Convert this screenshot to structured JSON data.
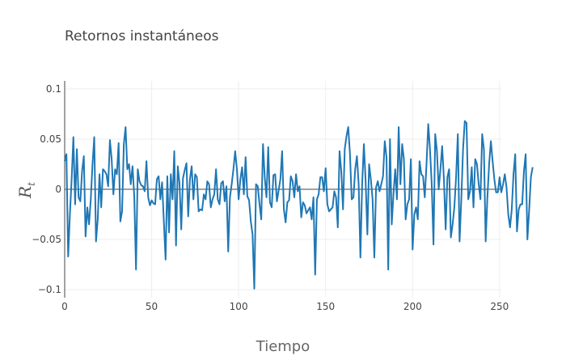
{
  "chart_data": {
    "type": "line",
    "title": "Retornos instantáneos",
    "xlabel": "Tiempo",
    "ylabel": "R",
    "ylabel_subscript": "t",
    "xlim": [
      0,
      251
    ],
    "ylim": [
      -0.108,
      0.108
    ],
    "x_ticks": [
      0,
      50,
      100,
      150,
      200,
      250
    ],
    "x_tick_labels": [
      "0",
      "50",
      "100",
      "150",
      "200",
      "250"
    ],
    "y_ticks": [
      -0.1,
      -0.05,
      0,
      0.05,
      0.1
    ],
    "y_tick_labels": [
      "−0.1",
      "−0.05",
      "0",
      "0.05",
      "0.1"
    ],
    "grid": true,
    "zero_line": true,
    "series": [
      {
        "color": "#1f77b4",
        "x_start": 0,
        "x_step": 1,
        "y": [
          0.028,
          0.035,
          -0.067,
          -0.025,
          0.01,
          0.052,
          -0.015,
          0.04,
          -0.008,
          -0.012,
          0.018,
          0.033,
          -0.047,
          -0.018,
          -0.035,
          -0.01,
          0.025,
          0.052,
          -0.052,
          -0.03,
          0.015,
          -0.018,
          0.02,
          0.018,
          0.015,
          0.003,
          0.049,
          0.03,
          -0.005,
          0.02,
          0.015,
          0.046,
          -0.032,
          -0.022,
          0.045,
          0.062,
          0.02,
          0.025,
          0.005,
          0.023,
          -0.007,
          -0.08,
          0.02,
          0.008,
          0.004,
          0.003,
          -0.002,
          0.028,
          -0.008,
          -0.016,
          -0.011,
          -0.014,
          -0.015,
          0.01,
          0.013,
          -0.01,
          0.007,
          -0.032,
          -0.07,
          0.013,
          -0.043,
          0.015,
          -0.01,
          0.038,
          -0.056,
          0.023,
          0.006,
          -0.04,
          0.011,
          0.019,
          0.026,
          -0.027,
          0.01,
          0.023,
          -0.01,
          0.015,
          0.012,
          -0.022,
          -0.02,
          -0.021,
          -0.005,
          -0.01,
          0.008,
          0.005,
          -0.018,
          -0.01,
          -0.005,
          0.02,
          -0.01,
          -0.015,
          0.006,
          0.008,
          -0.012,
          0.003,
          -0.062,
          -0.008,
          0.005,
          0.02,
          0.038,
          0.02,
          -0.01,
          0.01,
          0.022,
          -0.005,
          0.032,
          -0.007,
          -0.011,
          -0.032,
          -0.045,
          -0.099,
          0.005,
          0.003,
          -0.015,
          -0.03,
          0.045,
          0.012,
          -0.008,
          0.042,
          -0.013,
          -0.018,
          0.014,
          0.015,
          -0.012,
          -0.001,
          0.01,
          0.038,
          -0.02,
          -0.033,
          -0.013,
          -0.011,
          0.013,
          0.008,
          -0.008,
          0.015,
          -0.002,
          0.003,
          -0.028,
          -0.013,
          -0.016,
          -0.024,
          -0.021,
          -0.018,
          -0.03,
          -0.008,
          -0.085,
          -0.01,
          -0.005,
          0.012,
          0.012,
          -0.002,
          0.021,
          -0.015,
          -0.022,
          -0.02,
          -0.018,
          -0.002,
          -0.008,
          -0.038,
          0.038,
          0.018,
          -0.02,
          0.04,
          0.053,
          0.062,
          0.035,
          -0.01,
          -0.008,
          0.02,
          0.033,
          0.005,
          -0.068,
          0.005,
          0.045,
          0.008,
          -0.045,
          0.025,
          0.01,
          -0.01,
          -0.068,
          0.002,
          0.008,
          -0.002,
          0.005,
          0.013,
          0.048,
          0.032,
          -0.08,
          0.05,
          -0.035,
          -0.005,
          0.02,
          -0.01,
          0.062,
          0.005,
          0.045,
          0.03,
          -0.03,
          -0.015,
          -0.01,
          0.03,
          -0.06,
          -0.025,
          -0.018,
          -0.03,
          0.028,
          0.015,
          0.013,
          -0.008,
          0.025,
          0.065,
          0.04,
          0.005,
          -0.055,
          0.055,
          0.038,
          0.0,
          0.02,
          0.043,
          0.01,
          -0.04,
          0.012,
          0.02,
          -0.048,
          -0.035,
          -0.018,
          0.012,
          0.055,
          -0.052,
          -0.01,
          0.04,
          0.068,
          0.066,
          -0.01,
          -0.002,
          0.022,
          -0.018,
          0.03,
          0.025,
          0.005,
          -0.01,
          0.055,
          0.04,
          -0.052,
          -0.008,
          0.025,
          0.048,
          0.028,
          0.01,
          -0.003,
          -0.003,
          0.012,
          -0.003,
          0.005,
          0.015,
          0.002,
          -0.025,
          -0.038,
          -0.02,
          0.015,
          0.035,
          -0.042,
          -0.02,
          -0.015,
          -0.015,
          0.018,
          0.035,
          -0.05,
          -0.021,
          0.012,
          0.022
        ]
      }
    ]
  }
}
